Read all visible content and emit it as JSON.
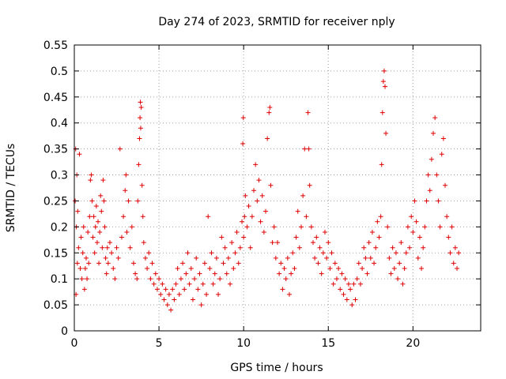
{
  "chart_data": {
    "type": "scatter",
    "title": "Day 274 of 2023, SRMTID for receiver nply",
    "xlabel": "GPS time / hours",
    "ylabel": "SRMTID / TECUs",
    "xlim": [
      0,
      24
    ],
    "ylim": [
      0,
      0.55
    ],
    "x_ticks": [
      "0",
      "5",
      "10",
      "15",
      "20"
    ],
    "y_ticks": [
      "0",
      "0.05",
      "0.1",
      "0.15",
      "0.2",
      "0.25",
      "0.3",
      "0.35",
      "0.4",
      "0.45",
      "0.5",
      "0.55"
    ],
    "grid": true,
    "marker": "plus",
    "color": "#e00000",
    "series": [
      {
        "points": [
          [
            0.05,
            0.25
          ],
          [
            0.08,
            0.35
          ],
          [
            0.1,
            0.07
          ],
          [
            0.12,
            0.2
          ],
          [
            0.15,
            0.3
          ],
          [
            0.18,
            0.13
          ],
          [
            0.2,
            0.23
          ],
          [
            0.25,
            0.16
          ],
          [
            0.3,
            0.34
          ],
          [
            0.35,
            0.12
          ],
          [
            0.4,
            0.18
          ],
          [
            0.45,
            0.1
          ],
          [
            0.5,
            0.15
          ],
          [
            0.55,
            0.2
          ],
          [
            0.6,
            0.08
          ],
          [
            0.65,
            0.12
          ],
          [
            0.7,
            0.14
          ],
          [
            0.75,
            0.1
          ],
          [
            0.8,
            0.19
          ],
          [
            0.85,
            0.13
          ],
          [
            0.9,
            0.22
          ],
          [
            0.95,
            0.29
          ],
          [
            1.0,
            0.3
          ],
          [
            1.05,
            0.25
          ],
          [
            1.1,
            0.18
          ],
          [
            1.15,
            0.22
          ],
          [
            1.2,
            0.15
          ],
          [
            1.25,
            0.2
          ],
          [
            1.3,
            0.24
          ],
          [
            1.35,
            0.17
          ],
          [
            1.4,
            0.21
          ],
          [
            1.45,
            0.13
          ],
          [
            1.5,
            0.19
          ],
          [
            1.55,
            0.26
          ],
          [
            1.6,
            0.23
          ],
          [
            1.65,
            0.16
          ],
          [
            1.7,
            0.29
          ],
          [
            1.75,
            0.25
          ],
          [
            1.8,
            0.2
          ],
          [
            1.85,
            0.14
          ],
          [
            1.9,
            0.11
          ],
          [
            1.95,
            0.16
          ],
          [
            2.0,
            0.13
          ],
          [
            2.1,
            0.17
          ],
          [
            2.2,
            0.15
          ],
          [
            2.3,
            0.12
          ],
          [
            2.4,
            0.1
          ],
          [
            2.5,
            0.16
          ],
          [
            2.6,
            0.14
          ],
          [
            2.7,
            0.35
          ],
          [
            2.8,
            0.18
          ],
          [
            2.9,
            0.22
          ],
          [
            3.0,
            0.27
          ],
          [
            3.05,
            0.3
          ],
          [
            3.1,
            0.19
          ],
          [
            3.2,
            0.25
          ],
          [
            3.3,
            0.16
          ],
          [
            3.4,
            0.2
          ],
          [
            3.5,
            0.13
          ],
          [
            3.6,
            0.11
          ],
          [
            3.7,
            0.1
          ],
          [
            3.75,
            0.25
          ],
          [
            3.8,
            0.32
          ],
          [
            3.85,
            0.37
          ],
          [
            3.88,
            0.41
          ],
          [
            3.9,
            0.44
          ],
          [
            3.92,
            0.39
          ],
          [
            3.95,
            0.43
          ],
          [
            4.0,
            0.28
          ],
          [
            4.05,
            0.22
          ],
          [
            4.1,
            0.17
          ],
          [
            4.2,
            0.14
          ],
          [
            4.3,
            0.12
          ],
          [
            4.4,
            0.15
          ],
          [
            4.5,
            0.1
          ],
          [
            4.6,
            0.13
          ],
          [
            4.7,
            0.09
          ],
          [
            4.8,
            0.11
          ],
          [
            4.9,
            0.08
          ],
          [
            5.0,
            0.1
          ],
          [
            5.1,
            0.07
          ],
          [
            5.2,
            0.09
          ],
          [
            5.3,
            0.06
          ],
          [
            5.4,
            0.08
          ],
          [
            5.5,
            0.05
          ],
          [
            5.6,
            0.07
          ],
          [
            5.7,
            0.04
          ],
          [
            5.8,
            0.08
          ],
          [
            5.9,
            0.06
          ],
          [
            6.0,
            0.09
          ],
          [
            6.1,
            0.12
          ],
          [
            6.2,
            0.07
          ],
          [
            6.3,
            0.1
          ],
          [
            6.4,
            0.13
          ],
          [
            6.5,
            0.08
          ],
          [
            6.6,
            0.11
          ],
          [
            6.7,
            0.15
          ],
          [
            6.8,
            0.09
          ],
          [
            6.9,
            0.12
          ],
          [
            7.0,
            0.06
          ],
          [
            7.1,
            0.1
          ],
          [
            7.2,
            0.14
          ],
          [
            7.3,
            0.08
          ],
          [
            7.4,
            0.11
          ],
          [
            7.5,
            0.05
          ],
          [
            7.6,
            0.09
          ],
          [
            7.7,
            0.13
          ],
          [
            7.8,
            0.07
          ],
          [
            7.9,
            0.22
          ],
          [
            8.0,
            0.12
          ],
          [
            8.1,
            0.15
          ],
          [
            8.2,
            0.09
          ],
          [
            8.3,
            0.11
          ],
          [
            8.4,
            0.14
          ],
          [
            8.5,
            0.07
          ],
          [
            8.6,
            0.1
          ],
          [
            8.7,
            0.18
          ],
          [
            8.8,
            0.13
          ],
          [
            8.9,
            0.16
          ],
          [
            9.0,
            0.11
          ],
          [
            9.1,
            0.14
          ],
          [
            9.2,
            0.09
          ],
          [
            9.3,
            0.17
          ],
          [
            9.4,
            0.12
          ],
          [
            9.5,
            0.15
          ],
          [
            9.6,
            0.19
          ],
          [
            9.7,
            0.13
          ],
          [
            9.8,
            0.16
          ],
          [
            9.9,
            0.21
          ],
          [
            10.0,
            0.18
          ],
          [
            9.95,
            0.36
          ],
          [
            9.98,
            0.41
          ],
          [
            10.05,
            0.22
          ],
          [
            10.1,
            0.26
          ],
          [
            10.2,
            0.2
          ],
          [
            10.3,
            0.24
          ],
          [
            10.4,
            0.16
          ],
          [
            10.5,
            0.22
          ],
          [
            10.6,
            0.27
          ],
          [
            10.7,
            0.32
          ],
          [
            10.8,
            0.25
          ],
          [
            10.9,
            0.29
          ],
          [
            11.0,
            0.21
          ],
          [
            11.1,
            0.26
          ],
          [
            11.2,
            0.19
          ],
          [
            11.3,
            0.23
          ],
          [
            11.4,
            0.37
          ],
          [
            11.5,
            0.42
          ],
          [
            11.55,
            0.43
          ],
          [
            11.6,
            0.28
          ],
          [
            11.7,
            0.17
          ],
          [
            11.8,
            0.2
          ],
          [
            11.9,
            0.14
          ],
          [
            12.0,
            0.17
          ],
          [
            12.1,
            0.11
          ],
          [
            12.2,
            0.13
          ],
          [
            12.3,
            0.08
          ],
          [
            12.4,
            0.12
          ],
          [
            12.5,
            0.1
          ],
          [
            12.6,
            0.14
          ],
          [
            12.7,
            0.07
          ],
          [
            12.8,
            0.11
          ],
          [
            12.9,
            0.15
          ],
          [
            13.0,
            0.12
          ],
          [
            13.1,
            0.18
          ],
          [
            13.2,
            0.23
          ],
          [
            13.3,
            0.16
          ],
          [
            13.4,
            0.2
          ],
          [
            13.5,
            0.26
          ],
          [
            13.6,
            0.35
          ],
          [
            13.7,
            0.22
          ],
          [
            13.8,
            0.42
          ],
          [
            13.85,
            0.35
          ],
          [
            13.9,
            0.28
          ],
          [
            14.0,
            0.2
          ],
          [
            14.1,
            0.17
          ],
          [
            14.2,
            0.14
          ],
          [
            14.3,
            0.18
          ],
          [
            14.4,
            0.13
          ],
          [
            14.5,
            0.16
          ],
          [
            14.6,
            0.11
          ],
          [
            14.7,
            0.15
          ],
          [
            14.8,
            0.19
          ],
          [
            14.9,
            0.14
          ],
          [
            15.0,
            0.17
          ],
          [
            15.1,
            0.12
          ],
          [
            15.2,
            0.15
          ],
          [
            15.3,
            0.09
          ],
          [
            15.4,
            0.13
          ],
          [
            15.5,
            0.1
          ],
          [
            15.6,
            0.12
          ],
          [
            15.7,
            0.08
          ],
          [
            15.8,
            0.11
          ],
          [
            15.9,
            0.07
          ],
          [
            16.0,
            0.1
          ],
          [
            16.1,
            0.06
          ],
          [
            16.2,
            0.09
          ],
          [
            16.3,
            0.08
          ],
          [
            16.4,
            0.05
          ],
          [
            16.5,
            0.09
          ],
          [
            16.6,
            0.06
          ],
          [
            16.7,
            0.1
          ],
          [
            16.8,
            0.13
          ],
          [
            16.9,
            0.09
          ],
          [
            17.0,
            0.12
          ],
          [
            17.1,
            0.16
          ],
          [
            17.2,
            0.14
          ],
          [
            17.3,
            0.11
          ],
          [
            17.4,
            0.17
          ],
          [
            17.5,
            0.14
          ],
          [
            17.6,
            0.19
          ],
          [
            17.7,
            0.13
          ],
          [
            17.8,
            0.16
          ],
          [
            17.9,
            0.21
          ],
          [
            18.0,
            0.18
          ],
          [
            18.1,
            0.22
          ],
          [
            18.15,
            0.32
          ],
          [
            18.2,
            0.42
          ],
          [
            18.25,
            0.48
          ],
          [
            18.3,
            0.5
          ],
          [
            18.35,
            0.47
          ],
          [
            18.4,
            0.38
          ],
          [
            18.5,
            0.2
          ],
          [
            18.6,
            0.14
          ],
          [
            18.7,
            0.11
          ],
          [
            18.8,
            0.16
          ],
          [
            18.9,
            0.12
          ],
          [
            19.0,
            0.15
          ],
          [
            19.1,
            0.1
          ],
          [
            19.2,
            0.13
          ],
          [
            19.3,
            0.17
          ],
          [
            19.4,
            0.09
          ],
          [
            19.5,
            0.12
          ],
          [
            19.6,
            0.15
          ],
          [
            19.7,
            0.2
          ],
          [
            19.8,
            0.16
          ],
          [
            19.9,
            0.22
          ],
          [
            20.0,
            0.19
          ],
          [
            20.1,
            0.25
          ],
          [
            20.2,
            0.21
          ],
          [
            20.3,
            0.14
          ],
          [
            20.4,
            0.18
          ],
          [
            20.5,
            0.12
          ],
          [
            20.6,
            0.16
          ],
          [
            20.7,
            0.2
          ],
          [
            20.8,
            0.25
          ],
          [
            20.9,
            0.3
          ],
          [
            21.0,
            0.27
          ],
          [
            21.1,
            0.33
          ],
          [
            21.2,
            0.38
          ],
          [
            21.3,
            0.41
          ],
          [
            21.4,
            0.3
          ],
          [
            21.5,
            0.25
          ],
          [
            21.6,
            0.2
          ],
          [
            21.7,
            0.34
          ],
          [
            21.8,
            0.37
          ],
          [
            21.9,
            0.28
          ],
          [
            22.0,
            0.22
          ],
          [
            22.1,
            0.18
          ],
          [
            22.2,
            0.15
          ],
          [
            22.3,
            0.2
          ],
          [
            22.4,
            0.13
          ],
          [
            22.5,
            0.16
          ],
          [
            22.6,
            0.12
          ],
          [
            22.7,
            0.15
          ]
        ]
      }
    ]
  }
}
